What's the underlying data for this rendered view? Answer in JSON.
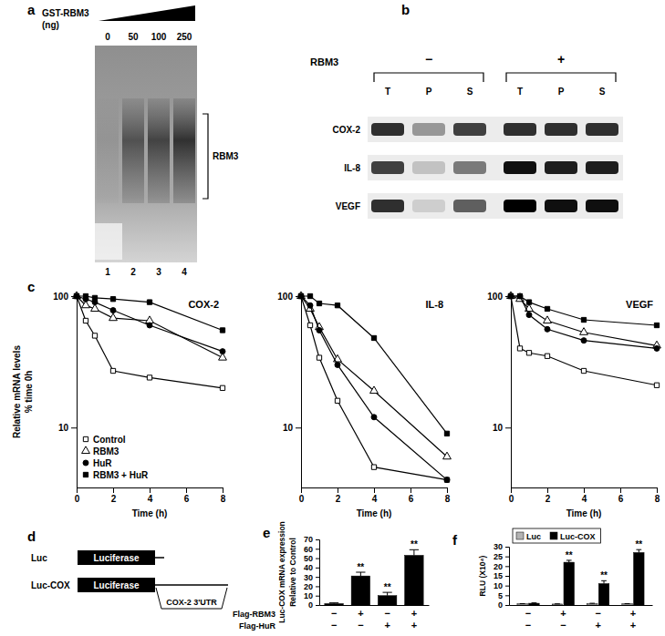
{
  "panels": {
    "a": {
      "label": "a",
      "title": [
        "GST-RBM3",
        "(ng)"
      ],
      "amounts": [
        0,
        50,
        100,
        250
      ],
      "lanes": [
        1,
        2,
        3,
        4
      ],
      "bracket_label": "RBM3",
      "complex_signal": [
        0.08,
        0.55,
        0.65,
        0.78
      ]
    },
    "b": {
      "label": "b",
      "factor": "RBM3",
      "groups": [
        "−",
        "+"
      ],
      "fractions": [
        "T",
        "P",
        "S"
      ],
      "rows": [
        {
          "name": "COX-2",
          "signal": [
            [
              0.85,
              0.5,
              0.8
            ],
            [
              0.85,
              0.85,
              0.85
            ]
          ]
        },
        {
          "name": "IL-8",
          "signal": [
            [
              0.8,
              0.35,
              0.6
            ],
            [
              0.95,
              0.9,
              0.9
            ]
          ]
        },
        {
          "name": "VEGF",
          "signal": [
            [
              0.85,
              0.3,
              0.7
            ],
            [
              1,
              0.95,
              0.95
            ]
          ]
        }
      ]
    },
    "d": {
      "label": "d",
      "constructs": [
        {
          "name": "Luc",
          "box": "Luciferase"
        },
        {
          "name": "Luc-COX",
          "box": "Luciferase",
          "insert": "COX-2 3'UTR"
        }
      ]
    }
  },
  "chart_data": [
    {
      "panel_label": "c",
      "type": "line",
      "title": "COX-2",
      "xlabel": "Time (h)",
      "ylabel": [
        "Relative mRNA levels",
        "% time 0h"
      ],
      "x": [
        0,
        0.5,
        1,
        2,
        4,
        8
      ],
      "xlim": [
        0,
        8
      ],
      "xticks": [
        0,
        2,
        4,
        6,
        8
      ],
      "ylim": [
        3.5,
        100
      ],
      "yticks": [
        10,
        100
      ],
      "log": "y",
      "legend": "lower left",
      "series": [
        {
          "name": "Control",
          "color": "#000000",
          "marker": "square-open",
          "line_style": "solid",
          "values": [
            100,
            65,
            50,
            27,
            24,
            20
          ]
        },
        {
          "name": "RBM3",
          "color": "#000000",
          "marker": "triangle-open",
          "line_style": "solid",
          "values": [
            100,
            85,
            80,
            68,
            65,
            34
          ]
        },
        {
          "name": "HuR",
          "color": "#000000",
          "marker": "circle",
          "line_style": "solid",
          "values": [
            100,
            95,
            90,
            78,
            60,
            38
          ]
        },
        {
          "name": "RBM3 + HuR",
          "color": "#000000",
          "marker": "square",
          "line_style": "solid",
          "values": [
            100,
            100,
            97,
            95,
            90,
            55
          ]
        }
      ]
    },
    {
      "type": "line",
      "title": "IL-8",
      "xlabel": "Time (h)",
      "x": [
        0,
        0.5,
        1,
        2,
        4,
        8
      ],
      "xlim": [
        0,
        8
      ],
      "xticks": [
        0,
        2,
        4,
        6,
        8
      ],
      "ylim": [
        3.5,
        100
      ],
      "yticks": [
        10,
        100
      ],
      "log": "y",
      "series": [
        {
          "color": "#000000",
          "marker": "square-open",
          "line_style": "solid",
          "values": [
            100,
            60,
            34,
            16,
            5,
            4
          ]
        },
        {
          "color": "#000000",
          "marker": "triangle-open",
          "line_style": "solid",
          "values": [
            100,
            80,
            58,
            33,
            19,
            6
          ]
        },
        {
          "color": "#000000",
          "marker": "circle",
          "line_style": "solid",
          "values": [
            100,
            85,
            55,
            30,
            12,
            4
          ]
        },
        {
          "color": "#000000",
          "marker": "square",
          "line_style": "solid",
          "values": [
            100,
            100,
            88,
            85,
            48,
            9
          ]
        }
      ]
    },
    {
      "type": "line",
      "title": "VEGF",
      "xlabel": "Time (h)",
      "x": [
        0,
        0.5,
        1,
        2,
        4,
        8
      ],
      "xlim": [
        0,
        8
      ],
      "xticks": [
        0,
        2,
        4,
        6,
        8
      ],
      "ylim": [
        3.5,
        100
      ],
      "yticks": [
        10,
        100
      ],
      "log": "y",
      "series": [
        {
          "color": "#000000",
          "marker": "square-open",
          "line_style": "solid",
          "values": [
            100,
            40,
            37,
            35,
            27,
            21
          ]
        },
        {
          "color": "#000000",
          "marker": "triangle-open",
          "line_style": "solid",
          "values": [
            100,
            95,
            80,
            65,
            53,
            42
          ]
        },
        {
          "color": "#000000",
          "marker": "circle",
          "line_style": "solid",
          "values": [
            100,
            100,
            72,
            56,
            46,
            40
          ]
        },
        {
          "color": "#000000",
          "marker": "square",
          "line_style": "solid",
          "values": [
            100,
            100,
            90,
            80,
            66,
            60
          ]
        }
      ]
    },
    {
      "panel_label": "e",
      "type": "bar",
      "ylabel": [
        "Luc-COX mRNA expression",
        "Relative to Control"
      ],
      "categories": [
        null,
        null,
        null,
        null
      ],
      "condition_rows": [
        {
          "name": "Flag-RBM3",
          "values": [
            "−",
            "+",
            "−",
            "+"
          ]
        },
        {
          "name": "Flag-HuR",
          "values": [
            "−",
            "−",
            "+",
            "+"
          ]
        }
      ],
      "ylim": [
        0,
        70
      ],
      "yticks": [
        0,
        10,
        20,
        30,
        40,
        50,
        60,
        70
      ],
      "series": [
        {
          "color": "#000000",
          "values": [
            1.5,
            31,
            10,
            53
          ],
          "errors": [
            0.8,
            4,
            3.5,
            6
          ],
          "significance": [
            null,
            "**",
            "**",
            "**"
          ]
        }
      ]
    },
    {
      "panel_label": "f",
      "type": "bar",
      "ylabel": "RLU (X10⁴)",
      "categories": [
        null,
        null,
        null,
        null
      ],
      "condition_rows": [
        {
          "values": [
            "−",
            "+",
            "−",
            "+"
          ]
        },
        {
          "values": [
            "−",
            "−",
            "+",
            "+"
          ]
        }
      ],
      "ylim": [
        0,
        30
      ],
      "yticks": [
        0,
        5,
        10,
        15,
        20,
        25,
        30
      ],
      "legend": "upper left",
      "series": [
        {
          "name": "Luc",
          "color": "#b3b3b3",
          "values": [
            0.6,
            0.5,
            0.7,
            0.6
          ],
          "errors": [
            0.1,
            0.1,
            0.2,
            0.1
          ]
        },
        {
          "name": "Luc-COX",
          "color": "#000000",
          "values": [
            0.9,
            22,
            11,
            27
          ],
          "errors": [
            0.2,
            1,
            1.5,
            1.5
          ],
          "significance": [
            null,
            "**",
            "**",
            "**"
          ]
        }
      ]
    }
  ]
}
